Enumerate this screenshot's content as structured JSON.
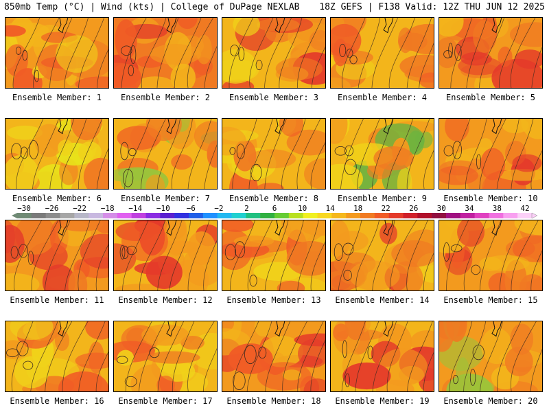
{
  "header": {
    "left": "850mb Temp (°C) | Wind (kts) | College of DuPage NEXLAB",
    "right": "18Z GEFS | F138 Valid: 12Z THU JUN 12 2025"
  },
  "members": [
    {
      "label": "Ensemble Member: 1",
      "palette": [
        "#f39a1e",
        "#f07a22",
        "#f05b26",
        "#f3b51b",
        "#f0d21a"
      ]
    },
    {
      "label": "Ensemble Member: 2",
      "palette": [
        "#f07a22",
        "#f05b26",
        "#e43a2a",
        "#f39a1e",
        "#f3b51b"
      ]
    },
    {
      "label": "Ensemble Member: 3",
      "palette": [
        "#f3b51b",
        "#f39a1e",
        "#f07a22",
        "#f0d21a",
        "#e43a2a"
      ]
    },
    {
      "label": "Ensemble Member: 4",
      "palette": [
        "#f3b51b",
        "#f39a1e",
        "#f07a22",
        "#f05b26",
        "#f0d21a"
      ]
    },
    {
      "label": "Ensemble Member: 5",
      "palette": [
        "#f39a1e",
        "#f07a22",
        "#f05b26",
        "#f3b51b",
        "#e43a2a"
      ]
    },
    {
      "label": "Ensemble Member: 6",
      "palette": [
        "#f3b51b",
        "#f0d21a",
        "#f39a1e",
        "#f07a22",
        "#e8e21a"
      ]
    },
    {
      "label": "Ensemble Member: 7",
      "palette": [
        "#f3b51b",
        "#f39a1e",
        "#f07a22",
        "#f05b26",
        "#9bc43a"
      ]
    },
    {
      "label": "Ensemble Member: 8",
      "palette": [
        "#f3b51b",
        "#f39a1e",
        "#f07a22",
        "#f0d21a",
        "#f05b26"
      ]
    },
    {
      "label": "Ensemble Member: 9",
      "palette": [
        "#f3b51b",
        "#f0d21a",
        "#f39a1e",
        "#f07a22",
        "#6db33f"
      ]
    },
    {
      "label": "Ensemble Member: 10",
      "palette": [
        "#f39a1e",
        "#f07a22",
        "#f05b26",
        "#e43a2a",
        "#f3b51b"
      ]
    },
    {
      "label": "Ensemble Member: 11",
      "palette": [
        "#f39a1e",
        "#f07a22",
        "#f05b26",
        "#e43a2a",
        "#f3b51b"
      ]
    },
    {
      "label": "Ensemble Member: 12",
      "palette": [
        "#f3b51b",
        "#f39a1e",
        "#f07a22",
        "#f05b26",
        "#e43a2a"
      ]
    },
    {
      "label": "Ensemble Member: 13",
      "palette": [
        "#f3b51b",
        "#f39a1e",
        "#f07a22",
        "#f05b26",
        "#f0d21a"
      ]
    },
    {
      "label": "Ensemble Member: 14",
      "palette": [
        "#f3b51b",
        "#f39a1e",
        "#f07a22",
        "#f0d21a",
        "#e43a2a"
      ]
    },
    {
      "label": "Ensemble Member: 15",
      "palette": [
        "#f39a1e",
        "#f07a22",
        "#f05b26",
        "#e43a2a",
        "#f3b51b"
      ]
    },
    {
      "label": "Ensemble Member: 16",
      "palette": [
        "#f3b51b",
        "#f39a1e",
        "#f07a22",
        "#f05b26",
        "#f0d21a"
      ]
    },
    {
      "label": "Ensemble Member: 17",
      "palette": [
        "#f3b51b",
        "#f0d21a",
        "#f39a1e",
        "#f07a22",
        "#f05b26"
      ]
    },
    {
      "label": "Ensemble Member: 18",
      "palette": [
        "#f39a1e",
        "#f07a22",
        "#f05b26",
        "#e43a2a",
        "#f3b51b"
      ]
    },
    {
      "label": "Ensemble Member: 19",
      "palette": [
        "#f3b51b",
        "#f39a1e",
        "#f07a22",
        "#f05b26",
        "#e43a2a"
      ]
    },
    {
      "label": "Ensemble Member: 20",
      "palette": [
        "#f39a1e",
        "#f07a22",
        "#f05b26",
        "#f3b51b",
        "#9bc43a"
      ]
    }
  ],
  "colorbar": {
    "ticks": [
      "−30",
      "−26",
      "−22",
      "−18",
      "−14",
      "−10",
      "−6",
      "−2",
      "2",
      "6",
      "10",
      "14",
      "18",
      "22",
      "26",
      "30",
      "34",
      "38",
      "42"
    ],
    "colors": [
      "#6f8a74",
      "#7a7a7a",
      "#8c8c8c",
      "#a6a6a6",
      "#b7b7c8",
      "#c8b8e0",
      "#d58ee8",
      "#e060f0",
      "#c040e0",
      "#8a2be2",
      "#5a20d0",
      "#3030e0",
      "#1f5fe8",
      "#1e90ff",
      "#22b8f0",
      "#20d0d0",
      "#20c080",
      "#30b040",
      "#66cc33",
      "#b8e020",
      "#f0f020",
      "#f8d820",
      "#f5b81c",
      "#f39a1e",
      "#f07a22",
      "#f05b26",
      "#e43a2a",
      "#d0202a",
      "#b0102a",
      "#901040",
      "#a01080",
      "#c020a0",
      "#e040c0",
      "#f070e0",
      "#f8a0f0",
      "#fbd0f8"
    ]
  }
}
